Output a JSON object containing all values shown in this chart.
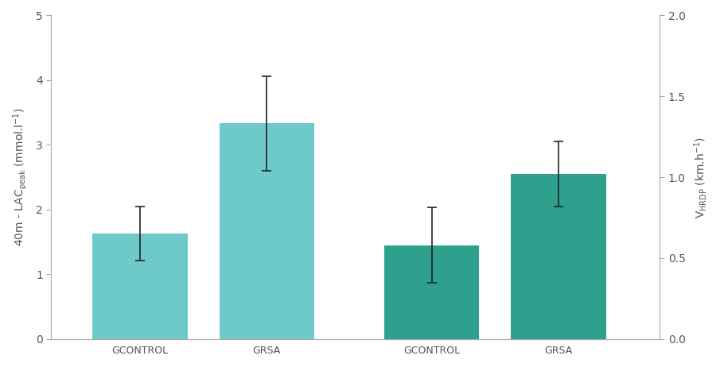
{
  "categories": [
    "GCONTROL",
    "GRSA",
    "GCONTROL",
    "GRSA"
  ],
  "values": [
    1.63,
    3.33,
    1.45,
    2.55
  ],
  "errors": [
    0.42,
    0.73,
    0.58,
    0.5
  ],
  "bar_colors": [
    "#6ec9c9",
    "#6ec9c9",
    "#2ea08e",
    "#2ea08e"
  ],
  "left_ylabel": "40m - LAC$_{\\mathregular{peak}}$ (mmol.l$^{-1}$)",
  "right_ylabel": "V$_{\\mathregular{HRDP}}$ (km.h$^{-1}$)",
  "left_ylim": [
    0,
    5
  ],
  "right_ylim": [
    0,
    2.0
  ],
  "left_yticks": [
    0,
    1,
    2,
    3,
    4,
    5
  ],
  "right_yticks": [
    0.0,
    0.5,
    1.0,
    1.5,
    2.0
  ],
  "background_color": "#ffffff",
  "bar_width": 0.75,
  "error_capsize": 4,
  "error_color": "#222222",
  "error_linewidth": 1.2,
  "tick_color": "#555555",
  "label_color": "#555555",
  "spine_color": "#aaaaaa",
  "x_positions": [
    1,
    2,
    3.3,
    4.3
  ],
  "xlim": [
    0.3,
    5.1
  ],
  "label_fontsize": 10,
  "tick_fontsize": 10,
  "xtick_fontsize": 9
}
